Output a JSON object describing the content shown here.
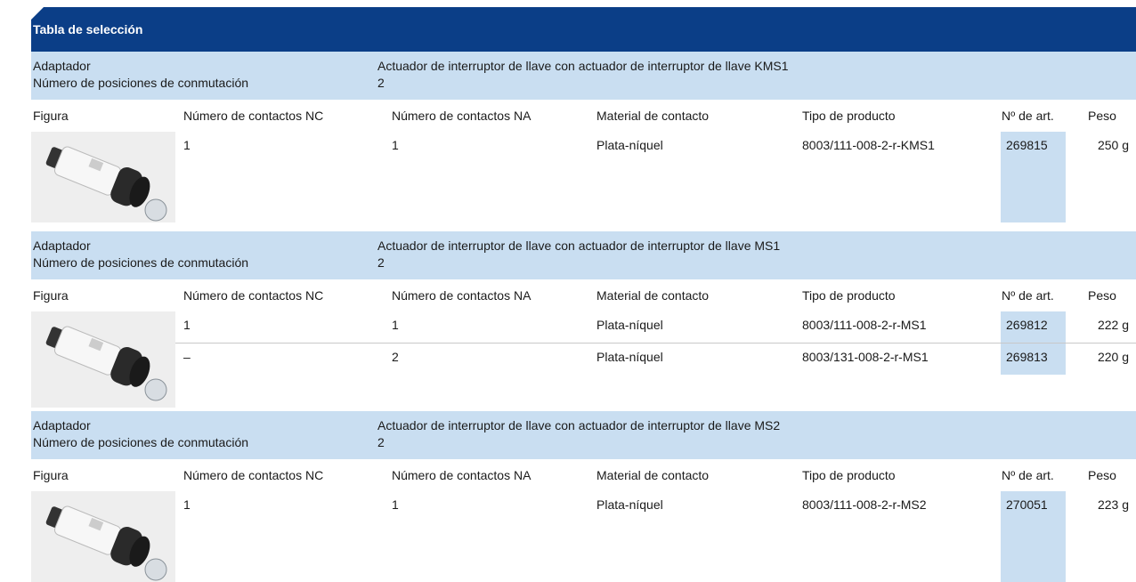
{
  "header": {
    "title": "Tabla de selección"
  },
  "sections": [
    {
      "adapter_label": "Adaptador",
      "adapter_value": "Actuador de interruptor de llave con actuador de interruptor de llave KMS1",
      "positions_label": "Número de posiciones de conmutación",
      "positions_value": "2",
      "columns": [
        "Figura",
        "Número de contactos NC",
        "Número de contactos NA",
        "Material de contacto",
        "Tipo de producto",
        "Nº de art.",
        "Peso"
      ],
      "rows": [
        [
          "1",
          "1",
          "Plata-níquel",
          "8003/111-008-2-r-KMS1",
          "269815",
          "250 g"
        ]
      ]
    },
    {
      "adapter_label": "Adaptador",
      "adapter_value": "Actuador de interruptor de llave con actuador de interruptor de llave MS1",
      "positions_label": "Número de posiciones de conmutación",
      "positions_value": "2",
      "columns": [
        "Figura",
        "Número de contactos NC",
        "Número de contactos NA",
        "Material de contacto",
        "Tipo de producto",
        "Nº de art.",
        "Peso"
      ],
      "rows": [
        [
          "1",
          "1",
          "Plata-níquel",
          "8003/111-008-2-r-MS1",
          "269812",
          "222 g"
        ],
        [
          "–",
          "2",
          "Plata-níquel",
          "8003/131-008-2-r-MS1",
          "269813",
          "220 g"
        ]
      ]
    },
    {
      "adapter_label": "Adaptador",
      "adapter_value": "Actuador de interruptor de llave con actuador de interruptor de llave MS2",
      "positions_label": "Número de posiciones de conmutación",
      "positions_value": "2",
      "columns": [
        "Figura",
        "Número de contactos NC",
        "Número de contactos NA",
        "Material de contacto",
        "Tipo de producto",
        "Nº de art.",
        "Peso"
      ],
      "rows": [
        [
          "1",
          "1",
          "Plata-níquel",
          "8003/111-008-2-r-MS2",
          "270051",
          "223 g"
        ]
      ]
    }
  ]
}
